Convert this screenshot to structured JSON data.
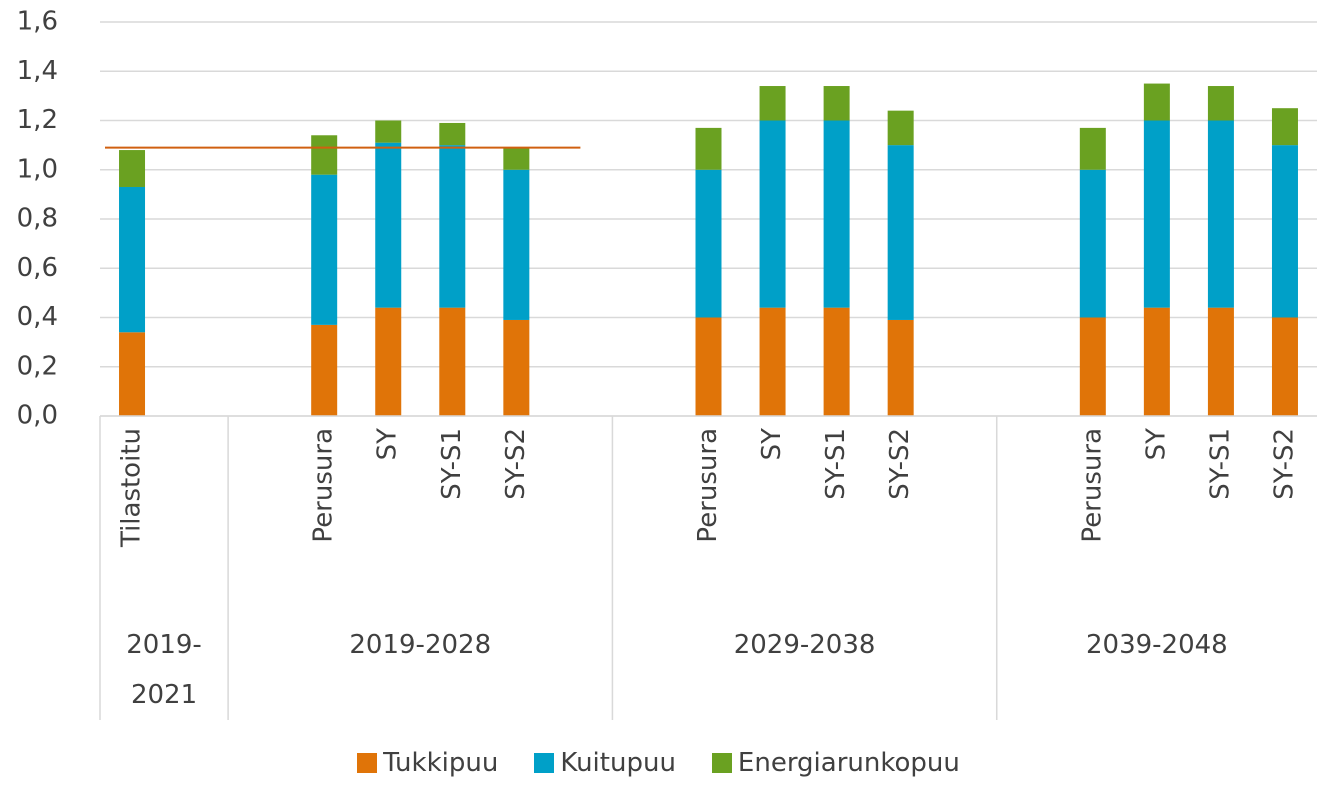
{
  "chart_data": {
    "type": "stacked-bar",
    "groups": [
      {
        "label": "2019-2021",
        "categories": [
          "Tilastoitu",
          null
        ]
      },
      {
        "label": "2019-2028",
        "categories": [
          null,
          "Perusura",
          "SY",
          "SY-S1",
          "SY-S2",
          null
        ]
      },
      {
        "label": "2029-2038",
        "categories": [
          null,
          "Perusura",
          "SY",
          "SY-S1",
          "SY-S2",
          null
        ]
      },
      {
        "label": "2039-2048",
        "categories": [
          null,
          "Perusura",
          "SY",
          "SY-S1",
          "SY-S2"
        ]
      }
    ],
    "series": [
      {
        "name": "Tukkipuu",
        "color": "#e07408",
        "values": [
          0.34,
          null,
          null,
          0.37,
          0.44,
          0.44,
          0.39,
          null,
          null,
          0.4,
          0.44,
          0.44,
          0.39,
          null,
          null,
          0.4,
          0.44,
          0.44,
          0.4
        ]
      },
      {
        "name": "Kuitupuu",
        "color": "#00a0c8",
        "values": [
          0.59,
          null,
          null,
          0.61,
          0.67,
          0.66,
          0.61,
          null,
          null,
          0.6,
          0.76,
          0.76,
          0.71,
          null,
          null,
          0.6,
          0.76,
          0.76,
          0.7
        ]
      },
      {
        "name": "Energiarunkopuu",
        "color": "#6aa121",
        "values": [
          0.15,
          null,
          null,
          0.16,
          0.09,
          0.09,
          0.09,
          null,
          null,
          0.17,
          0.14,
          0.14,
          0.14,
          null,
          null,
          0.17,
          0.15,
          0.14,
          0.15
        ]
      }
    ],
    "reference_line": {
      "value": 1.09,
      "color": "#d06010"
    },
    "ylim": [
      0,
      1.6
    ],
    "yticks": [
      {
        "value": 0,
        "label": "0,0"
      },
      {
        "value": 0.2,
        "label": "0,2"
      },
      {
        "value": 0.4,
        "label": "0,4"
      },
      {
        "value": 0.6,
        "label": "0,6"
      },
      {
        "value": 0.8,
        "label": "0,8"
      },
      {
        "value": 1.0,
        "label": "1,0"
      },
      {
        "value": 1.2,
        "label": "1,2"
      },
      {
        "value": 1.4,
        "label": "1,4"
      },
      {
        "value": 1.6,
        "label": "1,6"
      }
    ],
    "grid": true
  }
}
